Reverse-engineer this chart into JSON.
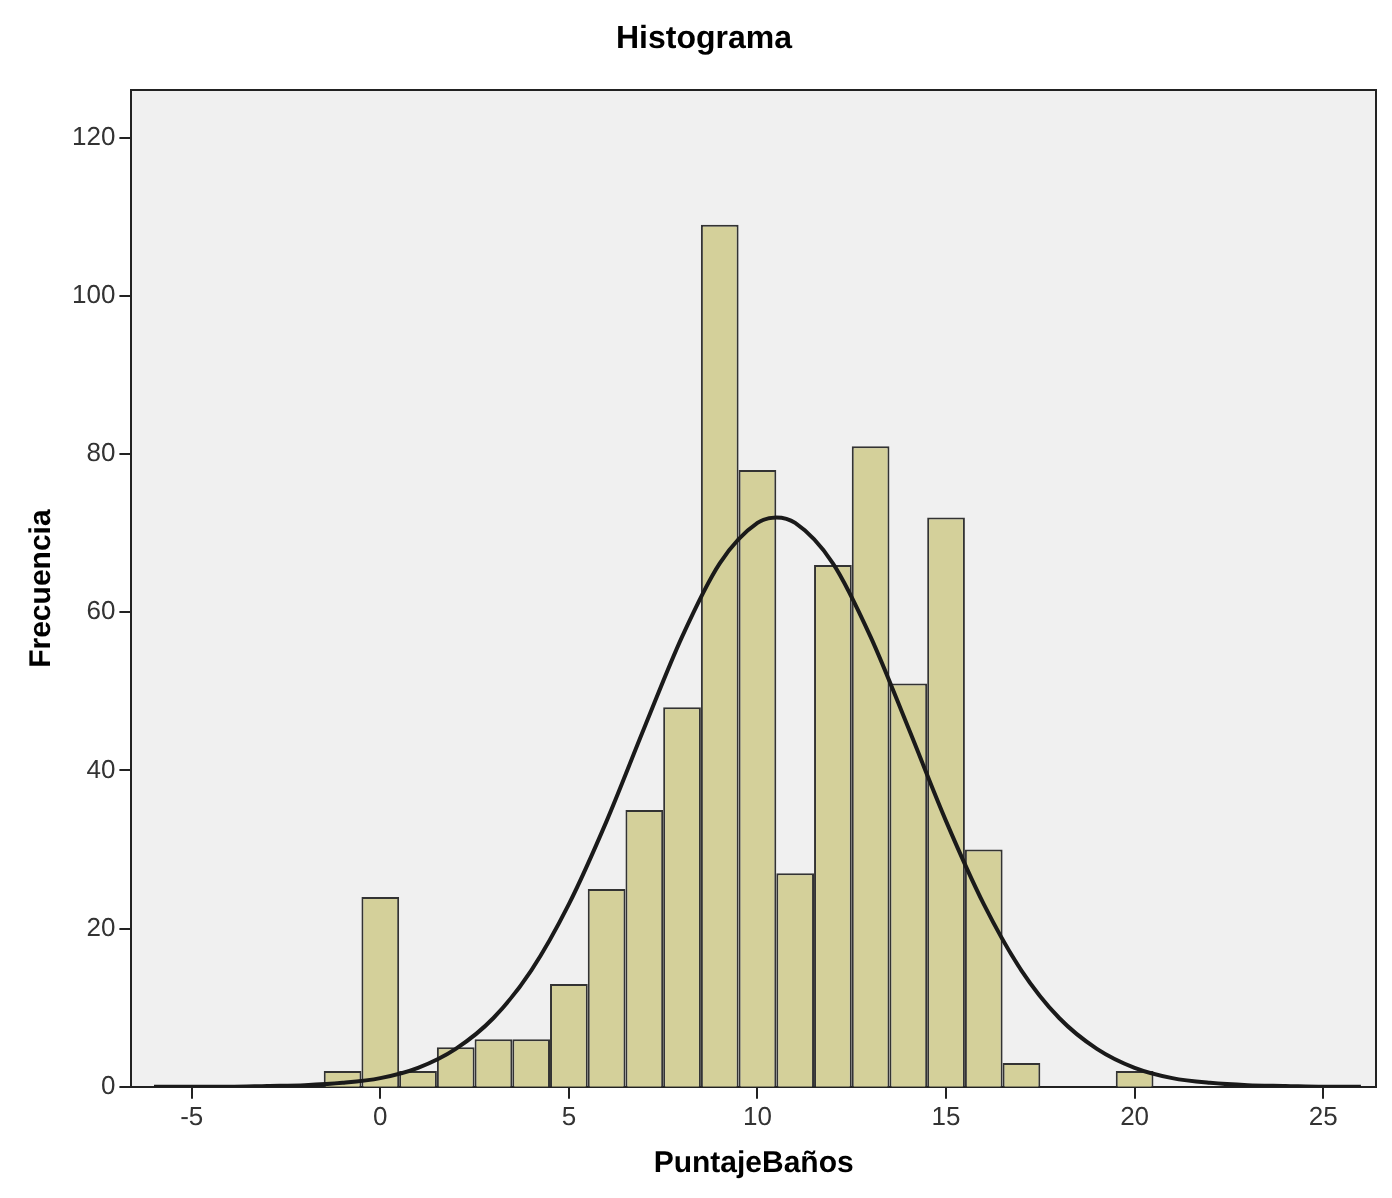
{
  "chart_data": {
    "type": "histogram",
    "title": "Histograma",
    "xlabel": "PuntajeBaños",
    "ylabel": "Frecuencia",
    "bins": [
      -1.5,
      -0.5,
      0.5,
      1.5,
      2.5,
      3.5,
      4.5,
      5.5,
      6.5,
      7.5,
      8.5,
      9.5,
      10.5,
      11.5,
      12.5,
      13.5,
      14.5,
      15.5,
      16.5,
      17.5,
      18.5,
      19.5,
      20.5
    ],
    "values": [
      2,
      24,
      2,
      5,
      6,
      6,
      13,
      25,
      35,
      48,
      109,
      78,
      27,
      66,
      81,
      51,
      72,
      30,
      3,
      0,
      0,
      2
    ],
    "color": "#d4d09a",
    "series": [
      {
        "type": "line",
        "color": "#1a1a1a",
        "x": [
          -6,
          -5,
          -4,
          -3,
          -2,
          -1,
          0,
          1,
          2,
          3,
          4,
          5,
          6,
          7,
          8,
          9,
          10,
          10.5,
          11,
          12,
          13,
          14,
          15,
          16,
          17,
          18,
          19,
          20,
          21,
          22,
          23,
          24,
          25,
          26
        ],
        "values": [
          0,
          0,
          0,
          0.1,
          0.2,
          0.5,
          1.1,
          2.4,
          4.8,
          8.7,
          14.7,
          23.1,
          33.6,
          45.4,
          56.9,
          66.2,
          71.3,
          72,
          71.3,
          66.2,
          56.9,
          45.4,
          33.6,
          23.1,
          14.7,
          8.7,
          4.8,
          2.4,
          1.1,
          0.5,
          0.2,
          0.1,
          0,
          0
        ]
      }
    ],
    "xlim": [
      -6.6,
      26.4
    ],
    "xticks": [
      -5,
      0,
      5,
      10,
      15,
      20,
      25
    ],
    "ylim": [
      0,
      126
    ],
    "yticks": [
      0,
      20,
      40,
      60,
      80,
      100,
      120
    ],
    "grid": false,
    "legend": false,
    "marker": "none",
    "line_style": "solid"
  }
}
